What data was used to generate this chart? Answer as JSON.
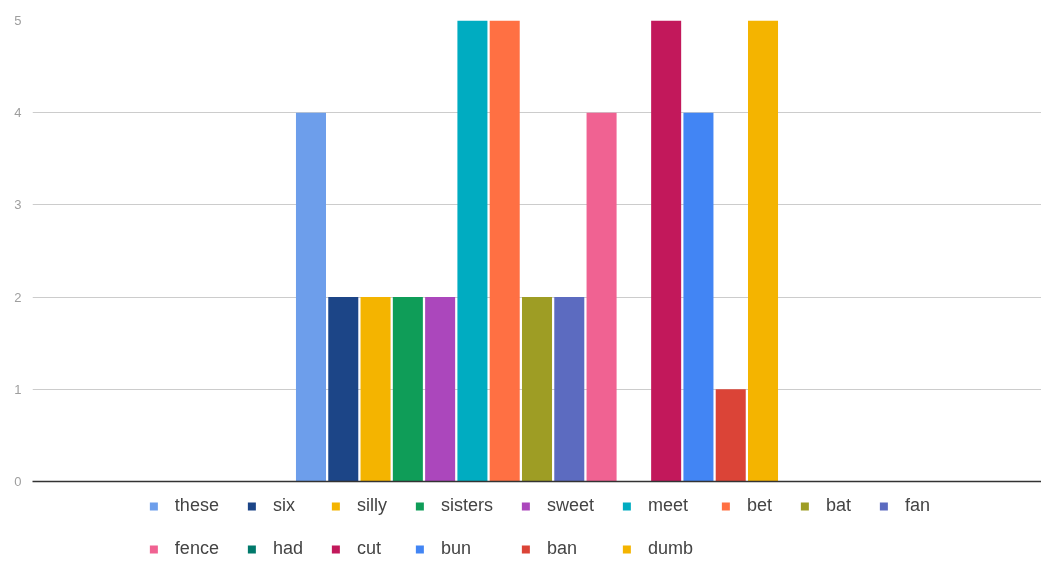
{
  "chart_data": {
    "type": "bar",
    "categories": [
      null
    ],
    "series": [
      {
        "name": "these",
        "color": "#6d9eeb",
        "values": [
          4
        ]
      },
      {
        "name": "six",
        "color": "#1c4587",
        "values": [
          2
        ]
      },
      {
        "name": "silly",
        "color": "#f4b400",
        "values": [
          2
        ]
      },
      {
        "name": "sisters",
        "color": "#0f9d58",
        "values": [
          2
        ]
      },
      {
        "name": "sweet",
        "color": "#ab47bc",
        "values": [
          2
        ]
      },
      {
        "name": "meet",
        "color": "#00acc1",
        "values": [
          5
        ]
      },
      {
        "name": "bet",
        "color": "#ff7043",
        "values": [
          5
        ]
      },
      {
        "name": "bat",
        "color": "#9e9d24",
        "values": [
          2
        ]
      },
      {
        "name": "fan",
        "color": "#5c6bc0",
        "values": [
          2
        ]
      },
      {
        "name": "fence",
        "color": "#f06292",
        "values": [
          4
        ]
      },
      {
        "name": "had",
        "color": "#00796b",
        "values": [
          null
        ]
      },
      {
        "name": "cut",
        "color": "#c2185b",
        "values": [
          5
        ]
      },
      {
        "name": "bun",
        "color": "#4285f4",
        "values": [
          4
        ]
      },
      {
        "name": "ban",
        "color": "#db4437",
        "values": [
          1
        ]
      },
      {
        "name": "dumb",
        "color": "#f4b400",
        "values": [
          5
        ]
      }
    ],
    "ylim": [
      0,
      5
    ],
    "yticks": [
      0,
      1,
      2,
      3,
      4,
      5
    ],
    "grid": "y",
    "legend": "bottom",
    "tick_labels": "y"
  }
}
